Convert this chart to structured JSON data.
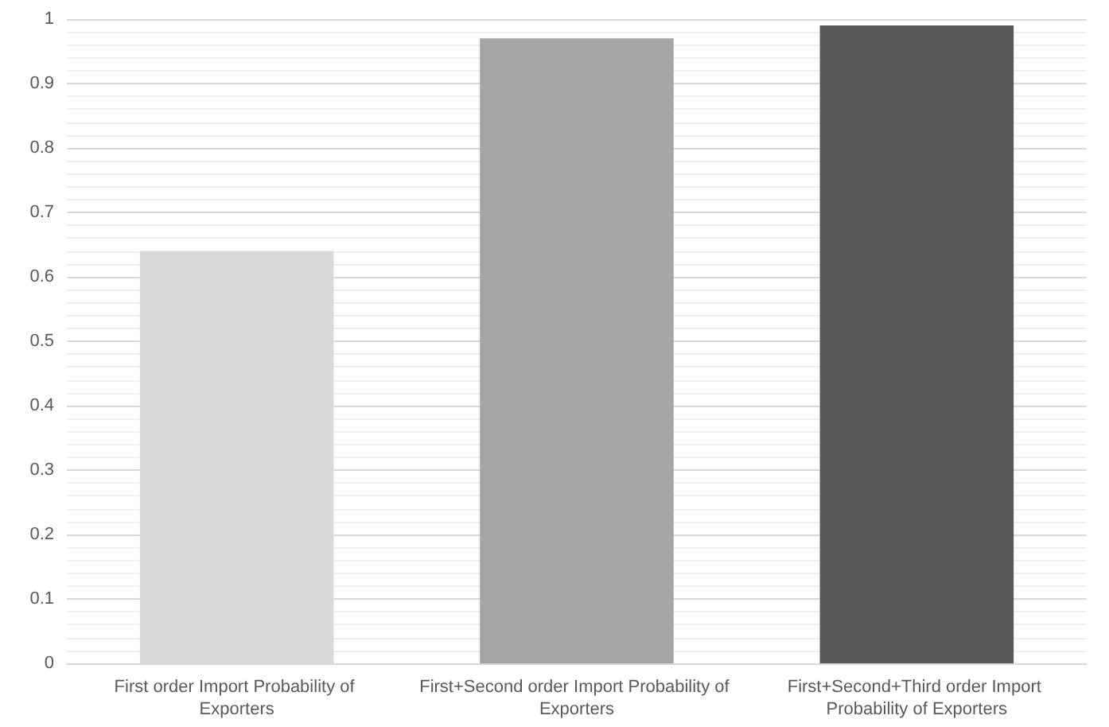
{
  "chart_data": {
    "type": "bar",
    "categories": [
      "First order Import Probability of Exporters",
      "First+Second order Import Probability of Exporters",
      "First+Second+Third order Import Probability of Exporters"
    ],
    "values": [
      0.64,
      0.97,
      0.99
    ],
    "colors": [
      "#d9d9d9",
      "#a5a5a5",
      "#595959"
    ],
    "ylim": [
      0,
      1
    ],
    "yticks": [
      0,
      0.1,
      0.2,
      0.3,
      0.4,
      0.5,
      0.6,
      0.7,
      0.8,
      0.9,
      1
    ],
    "grid": "y"
  }
}
